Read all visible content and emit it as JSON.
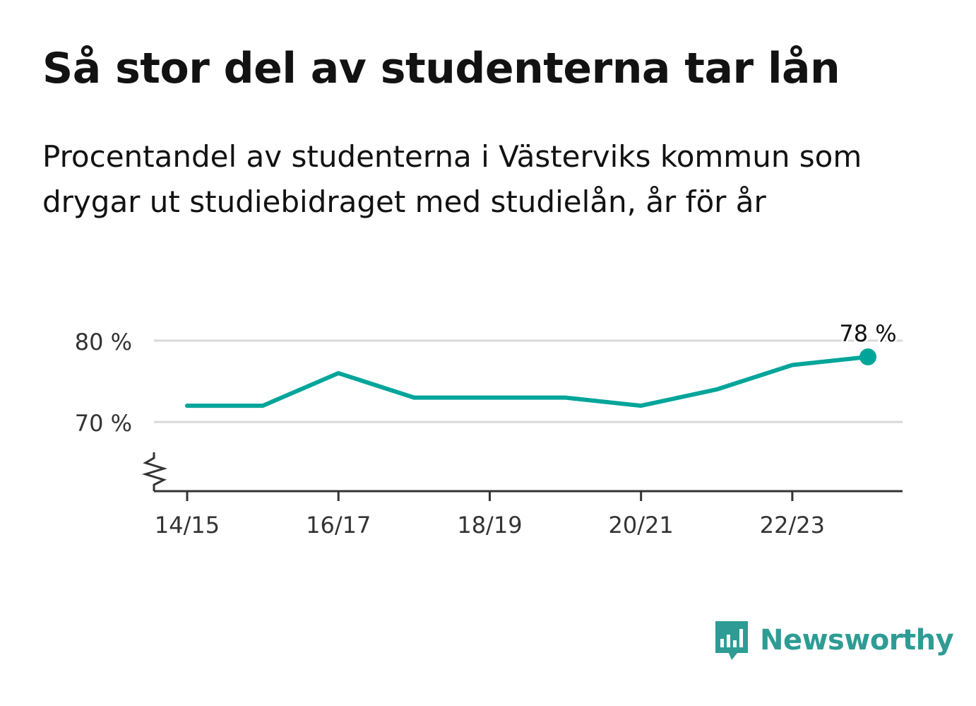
{
  "header": {
    "title": "Så stor del av studenterna tar lån",
    "subtitle": "Procentandel av studenterna i Västerviks kommun som drygar ut studiebidraget med studielån, år för år"
  },
  "chart_data": {
    "type": "line",
    "title": "Så stor del av studenterna tar lån",
    "subtitle": "Procentandel av studenterna i Västerviks kommun som drygar ut studiebidraget med studielån, år för år",
    "x": [
      "14/15",
      "15/16",
      "16/17",
      "17/18",
      "18/19",
      "19/20",
      "20/21",
      "21/22",
      "22/23",
      "23/24"
    ],
    "x_tick_labels": [
      "14/15",
      "16/17",
      "18/19",
      "20/21",
      "22/23"
    ],
    "series": [
      {
        "values": [
          72,
          72,
          76,
          73,
          73,
          73,
          72,
          74,
          77,
          78
        ]
      }
    ],
    "y_ticks": [
      70,
      80
    ],
    "y_tick_labels": [
      "70 %",
      "80 %"
    ],
    "ylim": [
      61.5,
      80
    ],
    "last_value_label": "78 %",
    "grid": true,
    "axis_break": true,
    "color": "#00a59a"
  },
  "branding": {
    "name": "Newsworthy",
    "color": "#2e9c95",
    "icon": "bar-chart-speech-bubble-icon"
  }
}
